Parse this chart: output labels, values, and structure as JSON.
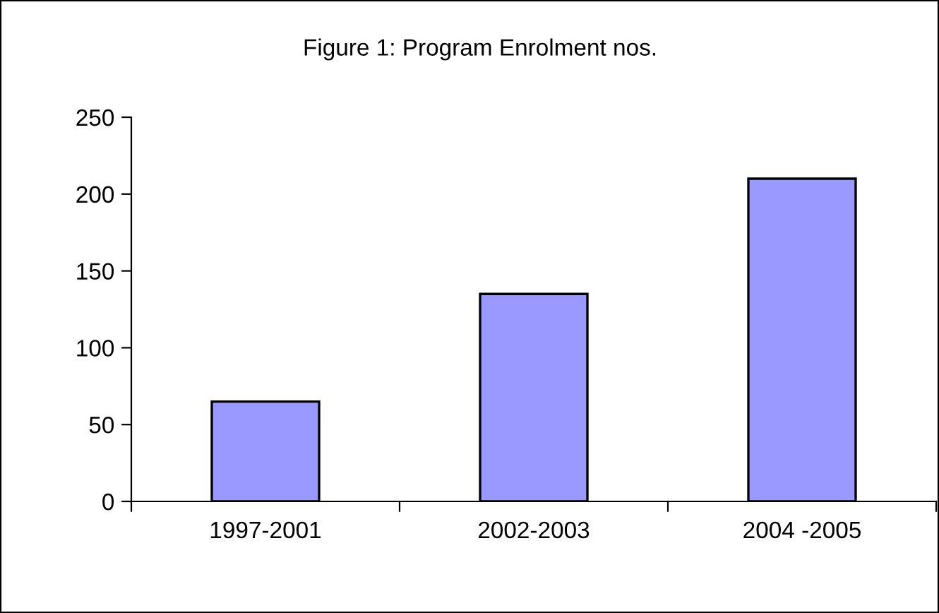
{
  "chart_data": {
    "type": "bar",
    "title": "Figure 1: Program Enrolment nos.",
    "categories": [
      "1997-2001",
      "2002-2003",
      "2004 -2005"
    ],
    "values": [
      65,
      135,
      210
    ],
    "color": "#9999ff",
    "ylim": [
      0,
      250
    ],
    "yticks": [
      0,
      50,
      100,
      150,
      200,
      250
    ],
    "grid": false,
    "legend": false
  }
}
